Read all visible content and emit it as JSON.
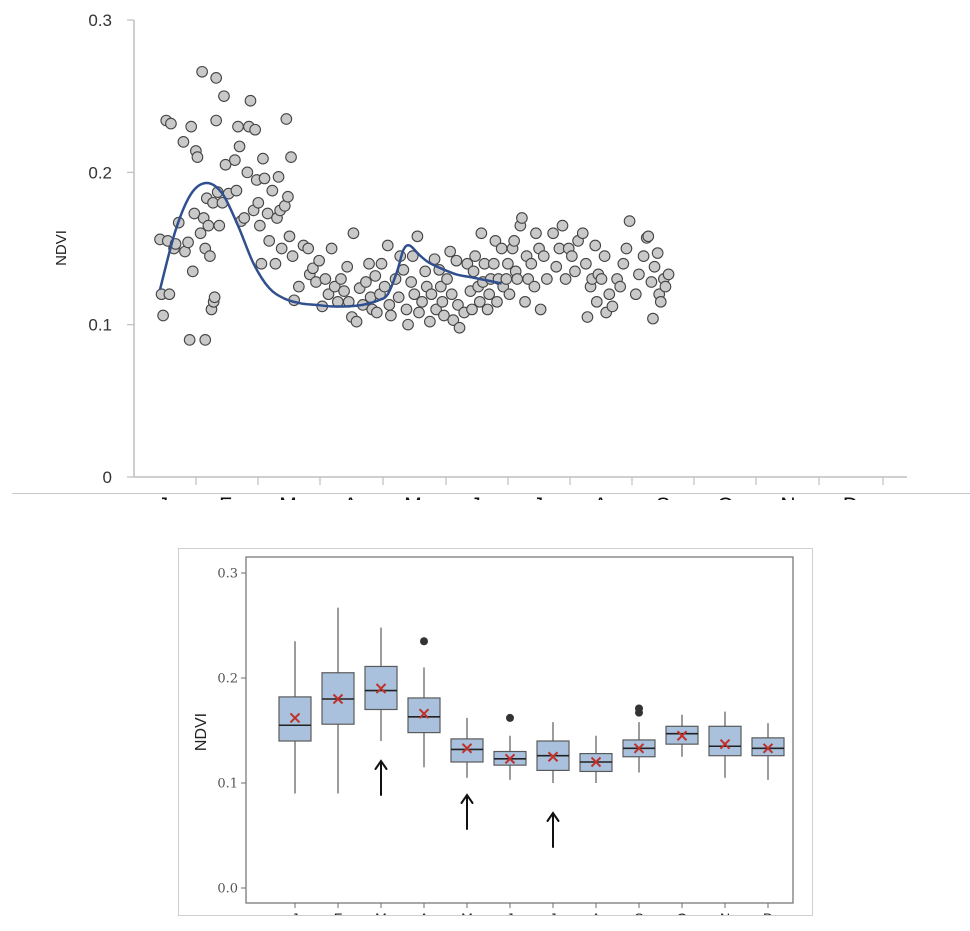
{
  "chart_data": [
    {
      "type": "scatter",
      "ylabel": "NDVI",
      "ylim": [
        0,
        0.3
      ],
      "y_ticks": [
        "0",
        "0.1",
        "0.2",
        "0.3"
      ],
      "x_month_labels": [
        "J",
        "F",
        "M",
        "A",
        "M",
        "J",
        "J",
        "A",
        "S",
        "O",
        "N",
        "D"
      ],
      "grid": false,
      "colors": {
        "points_fill": "#c9c9c9",
        "points_stroke": "#444444",
        "curve": "#2f4f8f",
        "axis": "#bfbfbf"
      },
      "curve": {
        "x": [
          0.0,
          0.5,
          1.0,
          1.5,
          2.0,
          2.5,
          3.0,
          3.5,
          4.0,
          4.5,
          5.0,
          5.5,
          6.0,
          6.5,
          7.0,
          7.3,
          7.6,
          7.8,
          8.0,
          8.3,
          8.6,
          9.0,
          9.5,
          10.0,
          10.5,
          10.95
        ],
        "y": [
          0.123,
          0.162,
          0.186,
          0.193,
          0.186,
          0.165,
          0.14,
          0.124,
          0.117,
          0.114,
          0.113,
          0.112,
          0.112,
          0.113,
          0.116,
          0.12,
          0.135,
          0.149,
          0.152,
          0.146,
          0.141,
          0.137,
          0.133,
          0.131,
          0.129,
          0.127
        ]
      },
      "series": [
        {
          "name": "",
          "points": [
            [
              0.0,
              0.156
            ],
            [
              0.05,
              0.12
            ],
            [
              0.1,
              0.106
            ],
            [
              0.2,
              0.234
            ],
            [
              0.25,
              0.155
            ],
            [
              0.3,
              0.12
            ],
            [
              0.35,
              0.232
            ],
            [
              0.45,
              0.15
            ],
            [
              0.5,
              0.153
            ],
            [
              0.6,
              0.167
            ],
            [
              0.75,
              0.22
            ],
            [
              0.8,
              0.148
            ],
            [
              0.9,
              0.154
            ],
            [
              0.95,
              0.09
            ],
            [
              1.0,
              0.23
            ],
            [
              1.05,
              0.135
            ],
            [
              1.1,
              0.173
            ],
            [
              1.15,
              0.214
            ],
            [
              1.2,
              0.21
            ],
            [
              1.3,
              0.16
            ],
            [
              1.35,
              0.266
            ],
            [
              1.4,
              0.17
            ],
            [
              1.45,
              0.09
            ],
            [
              1.45,
              0.15
            ],
            [
              1.5,
              0.183
            ],
            [
              1.55,
              0.165
            ],
            [
              1.6,
              0.145
            ],
            [
              1.65,
              0.11
            ],
            [
              1.7,
              0.18
            ],
            [
              1.72,
              0.115
            ],
            [
              1.75,
              0.118
            ],
            [
              1.8,
              0.262
            ],
            [
              1.8,
              0.234
            ],
            [
              1.85,
              0.187
            ],
            [
              1.9,
              0.165
            ],
            [
              2.0,
              0.18
            ],
            [
              2.05,
              0.25
            ],
            [
              2.1,
              0.205
            ],
            [
              2.2,
              0.186
            ],
            [
              2.4,
              0.208
            ],
            [
              2.45,
              0.188
            ],
            [
              2.5,
              0.23
            ],
            [
              2.55,
              0.217
            ],
            [
              2.6,
              0.168
            ],
            [
              2.7,
              0.17
            ],
            [
              2.8,
              0.2
            ],
            [
              2.85,
              0.23
            ],
            [
              2.9,
              0.247
            ],
            [
              3.0,
              0.175
            ],
            [
              3.05,
              0.228
            ],
            [
              3.1,
              0.195
            ],
            [
              3.15,
              0.18
            ],
            [
              3.2,
              0.165
            ],
            [
              3.25,
              0.14
            ],
            [
              3.3,
              0.209
            ],
            [
              3.35,
              0.196
            ],
            [
              3.45,
              0.173
            ],
            [
              3.5,
              0.155
            ],
            [
              3.6,
              0.188
            ],
            [
              3.7,
              0.14
            ],
            [
              3.75,
              0.17
            ],
            [
              3.8,
              0.197
            ],
            [
              3.85,
              0.175
            ],
            [
              3.9,
              0.15
            ],
            [
              4.0,
              0.178
            ],
            [
              4.05,
              0.235
            ],
            [
              4.1,
              0.184
            ],
            [
              4.15,
              0.158
            ],
            [
              4.2,
              0.21
            ],
            [
              4.25,
              0.145
            ],
            [
              4.3,
              0.116
            ],
            [
              4.45,
              0.125
            ],
            [
              4.6,
              0.152
            ],
            [
              4.75,
              0.15
            ],
            [
              4.8,
              0.133
            ],
            [
              4.9,
              0.137
            ],
            [
              5.0,
              0.128
            ],
            [
              5.1,
              0.142
            ],
            [
              5.2,
              0.112
            ],
            [
              5.3,
              0.13
            ],
            [
              5.4,
              0.12
            ],
            [
              5.5,
              0.15
            ],
            [
              5.6,
              0.125
            ],
            [
              5.7,
              0.115
            ],
            [
              5.8,
              0.13
            ],
            [
              5.9,
              0.122
            ],
            [
              6.0,
              0.138
            ],
            [
              6.05,
              0.115
            ],
            [
              6.15,
              0.105
            ],
            [
              6.2,
              0.16
            ],
            [
              6.3,
              0.102
            ],
            [
              6.4,
              0.124
            ],
            [
              6.5,
              0.113
            ],
            [
              6.6,
              0.128
            ],
            [
              6.7,
              0.14
            ],
            [
              6.75,
              0.118
            ],
            [
              6.8,
              0.11
            ],
            [
              6.9,
              0.132
            ],
            [
              6.95,
              0.108
            ],
            [
              7.05,
              0.12
            ],
            [
              7.1,
              0.14
            ],
            [
              7.2,
              0.125
            ],
            [
              7.3,
              0.152
            ],
            [
              7.35,
              0.113
            ],
            [
              7.4,
              0.106
            ],
            [
              7.55,
              0.13
            ],
            [
              7.65,
              0.118
            ],
            [
              7.7,
              0.145
            ],
            [
              7.8,
              0.136
            ],
            [
              7.9,
              0.11
            ],
            [
              7.95,
              0.1
            ],
            [
              8.05,
              0.128
            ],
            [
              8.1,
              0.145
            ],
            [
              8.15,
              0.12
            ],
            [
              8.25,
              0.158
            ],
            [
              8.3,
              0.108
            ],
            [
              8.4,
              0.115
            ],
            [
              8.5,
              0.135
            ],
            [
              8.55,
              0.125
            ],
            [
              8.65,
              0.102
            ],
            [
              8.7,
              0.12
            ],
            [
              8.8,
              0.143
            ],
            [
              8.85,
              0.11
            ],
            [
              8.95,
              0.136
            ],
            [
              9.0,
              0.125
            ],
            [
              9.05,
              0.115
            ],
            [
              9.1,
              0.106
            ],
            [
              9.2,
              0.13
            ],
            [
              9.3,
              0.148
            ],
            [
              9.35,
              0.12
            ],
            [
              9.4,
              0.103
            ],
            [
              9.5,
              0.142
            ],
            [
              9.55,
              0.113
            ],
            [
              9.6,
              0.098
            ],
            [
              9.75,
              0.108
            ],
            [
              9.85,
              0.14
            ],
            [
              9.95,
              0.122
            ],
            [
              10.0,
              0.11
            ],
            [
              10.05,
              0.135
            ],
            [
              10.1,
              0.145
            ],
            [
              10.2,
              0.125
            ],
            [
              10.25,
              0.115
            ],
            [
              10.3,
              0.16
            ],
            [
              10.35,
              0.128
            ],
            [
              10.4,
              0.14
            ],
            [
              10.5,
              0.11
            ],
            [
              10.55,
              0.12
            ],
            [
              10.6,
              0.13
            ],
            [
              10.7,
              0.14
            ],
            [
              10.75,
              0.155
            ],
            [
              10.8,
              0.115
            ],
            [
              10.85,
              0.13
            ],
            [
              10.95,
              0.15
            ],
            [
              11.0,
              0.125
            ],
            [
              11.1,
              0.13
            ],
            [
              11.15,
              0.14
            ],
            [
              11.2,
              0.12
            ],
            [
              11.3,
              0.15
            ],
            [
              11.35,
              0.155
            ],
            [
              11.4,
              0.135
            ],
            [
              11.45,
              0.13
            ],
            [
              11.55,
              0.165
            ],
            [
              11.6,
              0.17
            ],
            [
              11.7,
              0.115
            ],
            [
              11.75,
              0.145
            ],
            [
              11.8,
              0.13
            ],
            [
              11.9,
              0.14
            ],
            [
              12.0,
              0.125
            ],
            [
              12.05,
              0.16
            ],
            [
              12.15,
              0.15
            ],
            [
              12.2,
              0.11
            ],
            [
              12.3,
              0.145
            ],
            [
              12.4,
              0.13
            ],
            [
              12.6,
              0.16
            ],
            [
              12.7,
              0.138
            ],
            [
              12.8,
              0.15
            ],
            [
              12.9,
              0.165
            ],
            [
              13.0,
              0.13
            ],
            [
              13.1,
              0.15
            ],
            [
              13.2,
              0.145
            ],
            [
              13.3,
              0.135
            ],
            [
              13.4,
              0.155
            ],
            [
              13.55,
              0.16
            ],
            [
              13.65,
              0.14
            ],
            [
              13.7,
              0.105
            ],
            [
              13.8,
              0.125
            ],
            [
              13.85,
              0.13
            ],
            [
              13.95,
              0.152
            ],
            [
              14.0,
              0.115
            ],
            [
              14.05,
              0.133
            ],
            [
              14.15,
              0.13
            ],
            [
              14.25,
              0.145
            ],
            [
              14.3,
              0.108
            ],
            [
              14.4,
              0.12
            ],
            [
              14.5,
              0.112
            ],
            [
              14.65,
              0.13
            ],
            [
              14.75,
              0.125
            ],
            [
              14.85,
              0.14
            ],
            [
              14.95,
              0.15
            ],
            [
              15.05,
              0.168
            ],
            [
              15.25,
              0.12
            ],
            [
              15.35,
              0.133
            ],
            [
              15.5,
              0.145
            ],
            [
              15.6,
              0.157
            ],
            [
              15.65,
              0.158
            ],
            [
              15.75,
              0.128
            ],
            [
              15.8,
              0.104
            ],
            [
              15.85,
              0.138
            ],
            [
              15.95,
              0.147
            ],
            [
              16.0,
              0.12
            ],
            [
              16.05,
              0.115
            ],
            [
              16.15,
              0.13
            ],
            [
              16.2,
              0.125
            ],
            [
              16.3,
              0.133
            ]
          ]
        }
      ]
    },
    {
      "type": "box",
      "ylabel": "NDVI",
      "ylim": [
        0,
        0.3
      ],
      "y_ticks": [
        "0.0",
        "0.1",
        "0.2",
        "0.3"
      ],
      "categories": [
        "J",
        "F",
        "M",
        "A",
        "M",
        "J",
        "J",
        "A",
        "S",
        "O",
        "N",
        "D"
      ],
      "colors": {
        "box_fill": "#a9c1dc",
        "box_stroke": "#5a5a5a",
        "mean_marker": "#c0312b",
        "outlier": "#333333"
      },
      "boxes": [
        {
          "min": 0.09,
          "q1": 0.14,
          "median": 0.155,
          "q3": 0.182,
          "max": 0.235,
          "mean": 0.162,
          "outliers": []
        },
        {
          "min": 0.09,
          "q1": 0.156,
          "median": 0.18,
          "q3": 0.205,
          "max": 0.267,
          "mean": 0.18,
          "outliers": []
        },
        {
          "min": 0.14,
          "q1": 0.17,
          "median": 0.188,
          "q3": 0.211,
          "max": 0.248,
          "mean": 0.19,
          "outliers": []
        },
        {
          "min": 0.115,
          "q1": 0.148,
          "median": 0.163,
          "q3": 0.181,
          "max": 0.21,
          "mean": 0.166,
          "outliers": [
            0.235
          ]
        },
        {
          "min": 0.105,
          "q1": 0.12,
          "median": 0.132,
          "q3": 0.142,
          "max": 0.162,
          "mean": 0.133,
          "outliers": []
        },
        {
          "min": 0.103,
          "q1": 0.117,
          "median": 0.123,
          "q3": 0.13,
          "max": 0.145,
          "mean": 0.123,
          "outliers": [
            0.162
          ]
        },
        {
          "min": 0.1,
          "q1": 0.112,
          "median": 0.126,
          "q3": 0.14,
          "max": 0.158,
          "mean": 0.125,
          "outliers": []
        },
        {
          "min": 0.1,
          "q1": 0.111,
          "median": 0.12,
          "q3": 0.128,
          "max": 0.145,
          "mean": 0.12,
          "outliers": []
        },
        {
          "min": 0.11,
          "q1": 0.125,
          "median": 0.133,
          "q3": 0.141,
          "max": 0.158,
          "mean": 0.133,
          "outliers": [
            0.167,
            0.171
          ]
        },
        {
          "min": 0.125,
          "q1": 0.137,
          "median": 0.147,
          "q3": 0.154,
          "max": 0.165,
          "mean": 0.145,
          "outliers": []
        },
        {
          "min": 0.105,
          "q1": 0.126,
          "median": 0.135,
          "q3": 0.154,
          "max": 0.168,
          "mean": 0.137,
          "outliers": []
        },
        {
          "min": 0.103,
          "q1": 0.126,
          "median": 0.133,
          "q3": 0.143,
          "max": 0.157,
          "mean": 0.133,
          "outliers": []
        }
      ],
      "arrows_under_months": [
        2,
        4,
        6
      ]
    }
  ]
}
